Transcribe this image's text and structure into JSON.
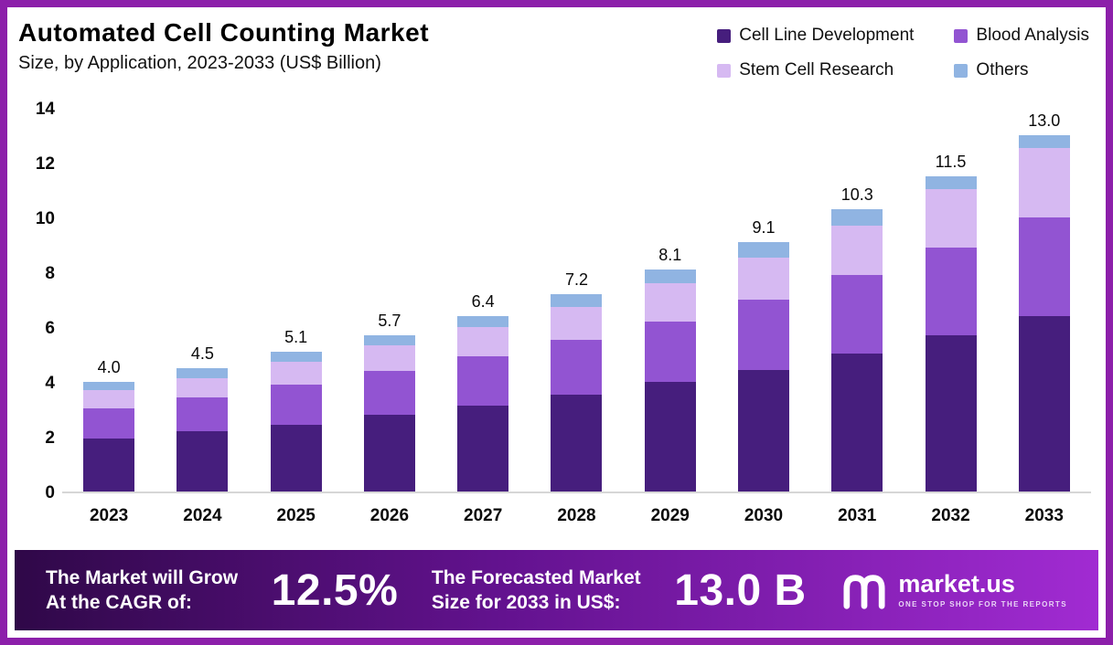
{
  "header": {
    "title": "Automated Cell Counting Market",
    "subtitle": "Size, by Application, 2023-2033 (US$ Billion)"
  },
  "chart_data": {
    "type": "bar",
    "stacked": true,
    "title": "Automated Cell Counting Market Size, by Application, 2023-2033 (US$ Billion)",
    "xlabel": "",
    "ylabel": "US$ Billion",
    "ylim": [
      0,
      14
    ],
    "yticks": [
      14,
      12,
      10,
      8,
      6,
      4,
      2,
      0
    ],
    "grid": false,
    "legend_position": "top-right",
    "categories": [
      "2023",
      "2024",
      "2025",
      "2026",
      "2027",
      "2028",
      "2029",
      "2030",
      "2031",
      "2032",
      "2033"
    ],
    "series": [
      {
        "name": "Cell Line Development",
        "color": "#461e7d",
        "values": [
          1.95,
          2.2,
          2.45,
          2.8,
          3.15,
          3.55,
          4.0,
          4.45,
          5.05,
          5.7,
          6.4
        ]
      },
      {
        "name": "Blood Analysis",
        "color": "#9254d2",
        "values": [
          1.1,
          1.25,
          1.45,
          1.6,
          1.8,
          2.0,
          2.2,
          2.55,
          2.85,
          3.2,
          3.6
        ]
      },
      {
        "name": "Stem Cell Research",
        "color": "#d6b9f2",
        "values": [
          0.65,
          0.7,
          0.85,
          0.95,
          1.05,
          1.2,
          1.4,
          1.55,
          1.8,
          2.15,
          2.55
        ]
      },
      {
        "name": "Others",
        "color": "#90b4e2",
        "values": [
          0.3,
          0.35,
          0.35,
          0.35,
          0.4,
          0.45,
          0.5,
          0.55,
          0.6,
          0.45,
          0.45
        ]
      }
    ],
    "totals": [
      4.0,
      4.5,
      5.1,
      5.7,
      6.4,
      7.2,
      8.1,
      9.1,
      10.3,
      11.5,
      13.0
    ],
    "total_labels": [
      "4.0",
      "4.5",
      "5.1",
      "5.7",
      "6.4",
      "7.2",
      "8.1",
      "9.1",
      "10.3",
      "11.5",
      "13.0"
    ]
  },
  "footer": {
    "cagr_label_line1": "The Market will Grow",
    "cagr_label_line2": "At the CAGR of:",
    "cagr_value": "12.5%",
    "forecast_label_line1": "The Forecasted Market",
    "forecast_label_line2": "Size for 2033 in US$:",
    "forecast_value": "13.0 B",
    "brand_name": "market.us",
    "brand_tagline": "ONE STOP SHOP FOR THE REPORTS"
  },
  "colors": {
    "frame_border": "#8c1faa",
    "background": "#ffffff",
    "footer_gradient_start": "#2f0848",
    "footer_gradient_end": "#a12bd2",
    "axis_text": "#0a0a0a"
  }
}
